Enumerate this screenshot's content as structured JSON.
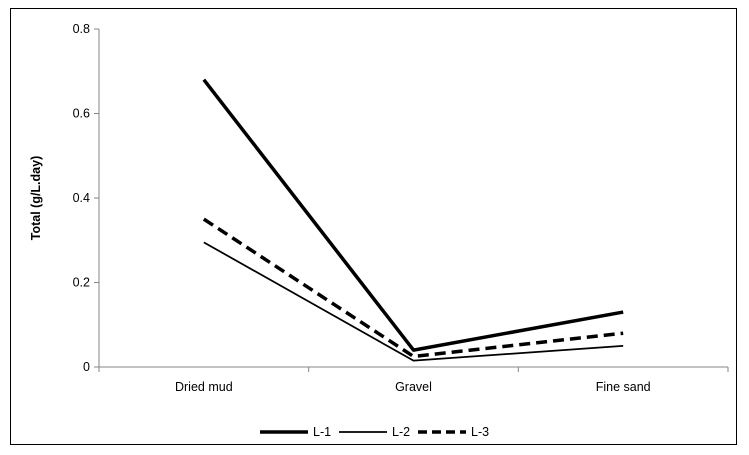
{
  "chart_data": {
    "type": "line",
    "title": "",
    "xlabel": "",
    "ylabel": "Total (g/L.day)",
    "categories": [
      "Dried mud",
      "Gravel",
      "Fine sand"
    ],
    "ylim": [
      0,
      0.8
    ],
    "yticks": [
      "0",
      "0.2",
      "0.4",
      "0.6",
      "0.8"
    ],
    "grid": false,
    "legend_position": "bottom",
    "series": [
      {
        "name": "L-1",
        "values": [
          0.68,
          0.04,
          0.13
        ],
        "color": "#000000",
        "style": "solid-thick"
      },
      {
        "name": "L-2",
        "values": [
          0.295,
          0.015,
          0.05
        ],
        "color": "#000000",
        "style": "solid-thin"
      },
      {
        "name": "L-3",
        "values": [
          0.35,
          0.025,
          0.08
        ],
        "color": "#000000",
        "style": "dashed-thick"
      }
    ]
  }
}
